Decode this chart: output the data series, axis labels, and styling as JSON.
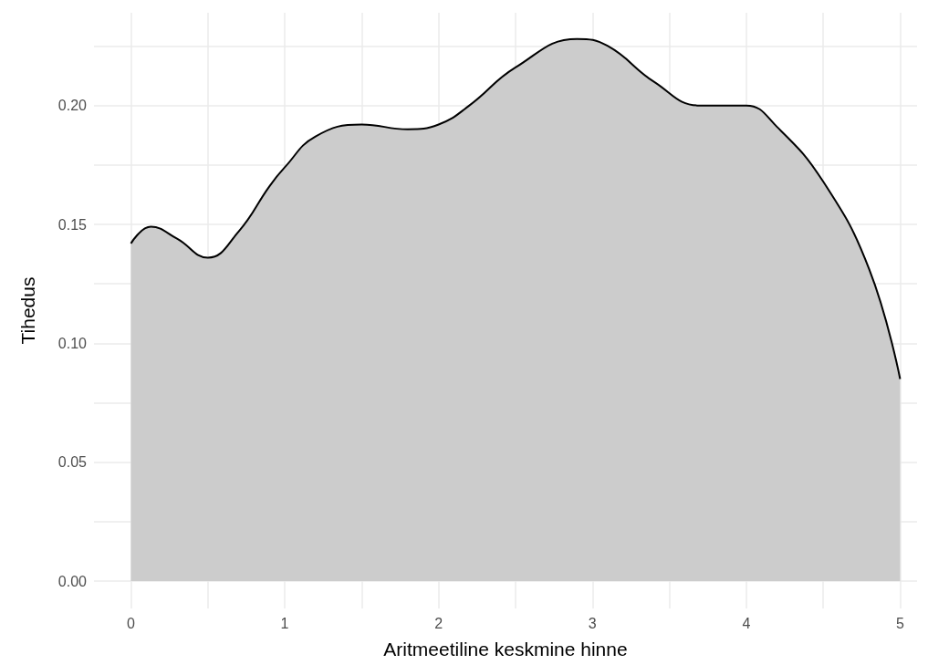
{
  "chart_data": {
    "type": "area",
    "xlabel": "Aritmeetiline keskmine hinne",
    "ylabel": "Tihedus",
    "x": [
      0,
      0.13,
      0.3,
      0.5,
      0.7,
      0.9,
      1.0,
      1.2,
      1.5,
      1.8,
      2.0,
      2.2,
      2.5,
      2.9,
      3.1,
      3.4,
      3.7,
      4.0,
      4.2,
      4.5,
      4.8,
      5.0
    ],
    "series": [
      {
        "color": "#cccccc",
        "values": [
          0.142,
          0.149,
          0.144,
          0.136,
          0.147,
          0.166,
          0.174,
          0.187,
          0.192,
          0.19,
          0.192,
          0.2,
          0.216,
          0.228,
          0.225,
          0.21,
          0.2,
          0.2,
          0.191,
          0.168,
          0.131,
          0.085
        ]
      }
    ],
    "xlim": [
      -0.24,
      5.11
    ],
    "ylim": [
      -0.0115,
      0.239
    ],
    "xticks": [
      0,
      {
        "value": 0.5,
        "label": null
      },
      1,
      {
        "value": 1.5,
        "label": null
      },
      2,
      {
        "value": 2.5,
        "label": null
      },
      3,
      {
        "value": 3.5,
        "label": null
      },
      4,
      {
        "value": 4.5,
        "label": null
      },
      5
    ],
    "yticks": [
      {
        "value": 0,
        "label": "0.00"
      },
      {
        "value": 0.025,
        "label": null
      },
      {
        "value": 0.05,
        "label": "0.05"
      },
      {
        "value": 0.075,
        "label": null
      },
      {
        "value": 0.1,
        "label": "0.10"
      },
      {
        "value": 0.125,
        "label": null
      },
      {
        "value": 0.15,
        "label": "0.15"
      },
      {
        "value": 0.175,
        "label": null
      },
      {
        "value": 0.2,
        "label": "0.20"
      },
      {
        "value": 0.225,
        "label": null
      }
    ],
    "grid": true,
    "marker": "none",
    "line_style": "solid"
  }
}
